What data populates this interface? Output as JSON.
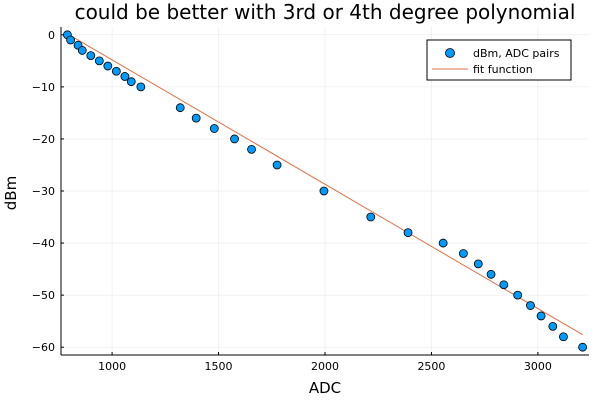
{
  "chart_data": {
    "type": "scatter",
    "title": "could be better with 3rd or 4th degree polynomial",
    "xlabel": "ADC",
    "ylabel": "dBm",
    "xlim": [
      760,
      3240
    ],
    "ylim": [
      -61.5,
      1.5
    ],
    "xticks": [
      1000,
      1500,
      2000,
      2500,
      3000
    ],
    "yticks": [
      0,
      -10,
      -20,
      -30,
      -40,
      -50,
      -60
    ],
    "grid": true,
    "legend_position": "top-right",
    "series": [
      {
        "name": "dBm, ADC pairs",
        "kind": "scatter",
        "color": "#009AFA",
        "x": [
          790,
          805,
          840,
          860,
          900,
          940,
          980,
          1020,
          1060,
          1090,
          1135,
          1320,
          1395,
          1480,
          1575,
          1655,
          1775,
          1995,
          2215,
          2390,
          2555,
          2650,
          2720,
          2780,
          2840,
          2905,
          2965,
          3015,
          3070,
          3120,
          3210
        ],
        "y": [
          0,
          -1,
          -2,
          -3,
          -4,
          -5,
          -6,
          -7,
          -8,
          -9,
          -10,
          -14,
          -16,
          -18,
          -20,
          -22,
          -25,
          -30,
          -35,
          -38,
          -40,
          -42,
          -44,
          -46,
          -48,
          -50,
          -52,
          -54,
          -56,
          -58,
          -60
        ]
      },
      {
        "name": "fit function",
        "kind": "line",
        "color": "#E26F46",
        "x": [
          790,
          3210
        ],
        "y": [
          0.2,
          -57.6
        ]
      }
    ]
  }
}
